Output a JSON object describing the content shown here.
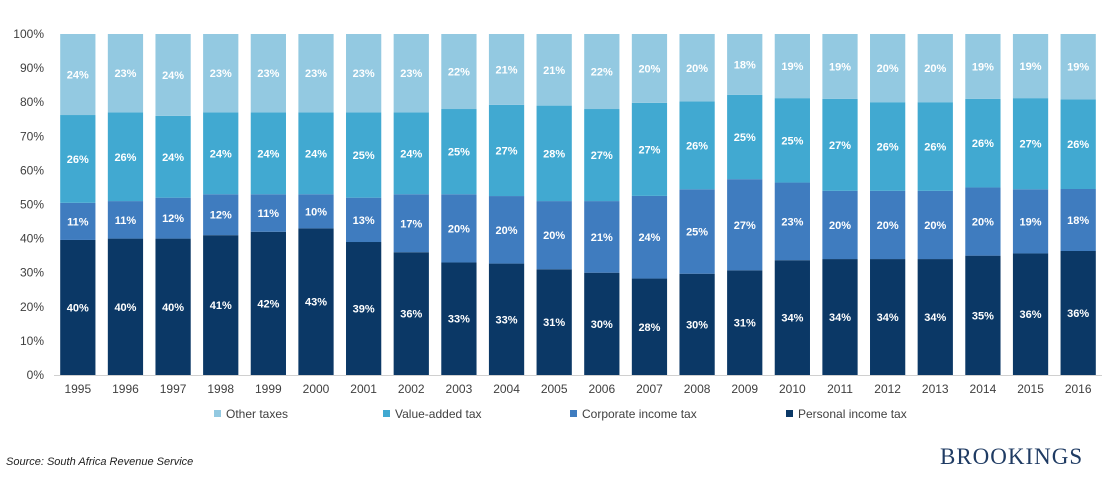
{
  "chart_data": {
    "type": "bar",
    "stacked": true,
    "categories": [
      "1995",
      "1996",
      "1997",
      "1998",
      "1999",
      "2000",
      "2001",
      "2002",
      "2003",
      "2004",
      "2005",
      "2006",
      "2007",
      "2008",
      "2009",
      "2010",
      "2011",
      "2012",
      "2013",
      "2014",
      "2015",
      "2016"
    ],
    "series": [
      {
        "name": "Personal income tax",
        "color": "#0b3866",
        "values": [
          40,
          40,
          40,
          41,
          42,
          43,
          39,
          36,
          33,
          33,
          31,
          30,
          28,
          30,
          31,
          34,
          34,
          34,
          34,
          35,
          36,
          36
        ]
      },
      {
        "name": "Corporate income tax",
        "color": "#3f7cbf",
        "values": [
          11,
          11,
          12,
          12,
          11,
          10,
          13,
          17,
          20,
          20,
          20,
          21,
          24,
          25,
          27,
          23,
          20,
          20,
          20,
          20,
          19,
          18
        ]
      },
      {
        "name": "Value-added tax",
        "color": "#41a9d1",
        "values": [
          26,
          26,
          24,
          24,
          24,
          24,
          25,
          24,
          25,
          27,
          28,
          27,
          27,
          26,
          25,
          25,
          27,
          26,
          26,
          26,
          27,
          26
        ]
      },
      {
        "name": "Other taxes",
        "color": "#93c9e1",
        "values": [
          24,
          23,
          24,
          23,
          23,
          23,
          23,
          23,
          22,
          21,
          21,
          22,
          20,
          20,
          18,
          19,
          19,
          20,
          20,
          19,
          19,
          19
        ]
      }
    ],
    "yticks": [
      "0%",
      "10%",
      "20%",
      "30%",
      "40%",
      "50%",
      "60%",
      "70%",
      "80%",
      "90%",
      "100%"
    ],
    "ylim": [
      0,
      100
    ],
    "legend_order": [
      "Other taxes",
      "Value-added tax",
      "Corporate income tax",
      "Personal income tax"
    ],
    "legend_position": "bottom",
    "grid": false
  },
  "footer": {
    "source": "Source: South Africa Revenue Service",
    "brand": "BROOKINGS"
  }
}
